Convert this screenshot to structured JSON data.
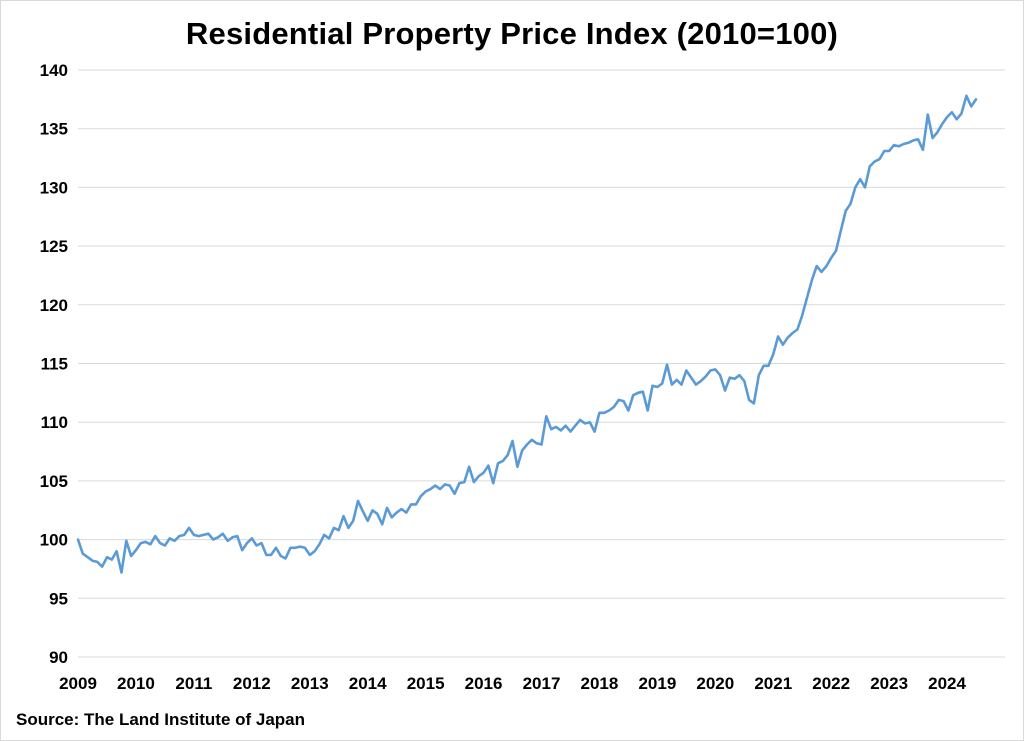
{
  "chart_data": {
    "type": "line",
    "title": "Residential Property Price Index (2010=100)",
    "xlabel": "",
    "ylabel": "",
    "ylim": [
      90,
      140
    ],
    "y_ticks": [
      90,
      95,
      100,
      105,
      110,
      115,
      120,
      125,
      130,
      135,
      140
    ],
    "x_ticks": [
      "2009",
      "2010",
      "2011",
      "2012",
      "2013",
      "2014",
      "2015",
      "2016",
      "2017",
      "2018",
      "2019",
      "2020",
      "2021",
      "2022",
      "2023",
      "2024"
    ],
    "grid": true,
    "legend": "none",
    "line_color": "#5b9bd5",
    "series": [
      {
        "x_start": "2009-01",
        "frequency": "monthly",
        "values": [
          100.0,
          98.8,
          98.5,
          98.2,
          98.1,
          97.7,
          98.5,
          98.3,
          99.0,
          97.2,
          99.9,
          98.6,
          99.1,
          99.7,
          99.8,
          99.6,
          100.3,
          99.7,
          99.5,
          100.1,
          99.9,
          100.3,
          100.4,
          101.0,
          100.4,
          100.3,
          100.4,
          100.5,
          100.0,
          100.2,
          100.5,
          99.9,
          100.2,
          100.3,
          99.1,
          99.7,
          100.1,
          99.5,
          99.7,
          98.7,
          98.7,
          99.3,
          98.6,
          98.4,
          99.3,
          99.3,
          99.4,
          99.3,
          98.7,
          99.0,
          99.6,
          100.4,
          100.1,
          101.0,
          100.8,
          102.0,
          101.0,
          101.6,
          103.3,
          102.4,
          101.6,
          102.5,
          102.2,
          101.3,
          102.7,
          101.9,
          102.3,
          102.6,
          102.3,
          103.0,
          103.0,
          103.7,
          104.1,
          104.3,
          104.6,
          104.3,
          104.7,
          104.6,
          103.9,
          104.8,
          104.9,
          106.2,
          104.9,
          105.4,
          105.7,
          106.3,
          104.8,
          106.5,
          106.7,
          107.2,
          108.4,
          106.2,
          107.6,
          108.1,
          108.5,
          108.2,
          108.1,
          110.5,
          109.4,
          109.6,
          109.3,
          109.7,
          109.2,
          109.7,
          110.2,
          109.9,
          110.0,
          109.2,
          110.8,
          110.8,
          111.0,
          111.3,
          111.9,
          111.8,
          111.0,
          112.3,
          112.5,
          112.6,
          111.0,
          113.1,
          113.0,
          113.3,
          114.9,
          113.2,
          113.6,
          113.2,
          114.4,
          113.8,
          113.2,
          113.5,
          113.9,
          114.4,
          114.5,
          114.0,
          112.7,
          113.8,
          113.7,
          114.0,
          113.5,
          111.9,
          111.6,
          114.0,
          114.8,
          114.8,
          115.8,
          117.3,
          116.6,
          117.2,
          117.6,
          117.9,
          119.1,
          120.6,
          122.1,
          123.3,
          122.8,
          123.3,
          124.0,
          124.6,
          126.3,
          128.0,
          128.6,
          130.0,
          130.7,
          130.0,
          131.8,
          132.2,
          132.4,
          133.1,
          133.1,
          133.6,
          133.5,
          133.7,
          133.8,
          134.0,
          134.1,
          133.2,
          136.2,
          134.2,
          134.7,
          135.4,
          136.0,
          136.4,
          135.8,
          136.3,
          137.8,
          136.9,
          137.5
        ]
      }
    ]
  },
  "source": "Source: The Land Institute of Japan"
}
